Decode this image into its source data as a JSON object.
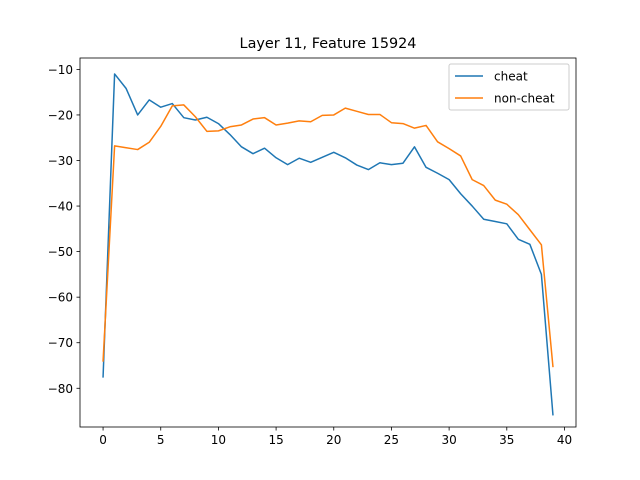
{
  "chart_data": {
    "type": "line",
    "title": "Layer 11, Feature 15924",
    "xlabel": "",
    "ylabel": "",
    "xlim": [
      -2,
      41
    ],
    "ylim": [
      -88.5,
      -7.5
    ],
    "xticks": [
      0,
      5,
      10,
      15,
      20,
      25,
      30,
      35,
      40
    ],
    "yticks": [
      -80,
      -70,
      -60,
      -50,
      -40,
      -30,
      -20,
      -10
    ],
    "grid": false,
    "legend_position": "top-right",
    "x": [
      0,
      1,
      2,
      3,
      4,
      5,
      6,
      7,
      8,
      9,
      10,
      11,
      12,
      13,
      14,
      15,
      16,
      17,
      18,
      19,
      20,
      21,
      22,
      23,
      24,
      25,
      26,
      27,
      28,
      29,
      30,
      31,
      32,
      33,
      34,
      35,
      36,
      37,
      38,
      39
    ],
    "series": [
      {
        "name": "cheat",
        "color": "#1f77b4",
        "values": [
          -77.5,
          -11.0,
          -14.2,
          -20.0,
          -16.7,
          -18.3,
          -17.5,
          -20.6,
          -21.1,
          -20.5,
          -21.9,
          -24.3,
          -27.0,
          -28.5,
          -27.3,
          -29.4,
          -30.9,
          -29.5,
          -30.4,
          -29.3,
          -28.2,
          -29.4,
          -31.0,
          -32.0,
          -30.5,
          -30.9,
          -30.6,
          -27.0,
          -31.5,
          -32.8,
          -34.2,
          -37.3,
          -40.0,
          -42.9,
          -43.4,
          -43.9,
          -47.3,
          -48.4,
          -55.0,
          -85.8
        ]
      },
      {
        "name": "non-cheat",
        "color": "#ff7f0e",
        "values": [
          -74.0,
          -26.8,
          -27.2,
          -27.6,
          -26.0,
          -22.5,
          -18.0,
          -17.8,
          -20.4,
          -23.6,
          -23.5,
          -22.6,
          -22.2,
          -20.9,
          -20.6,
          -22.2,
          -21.8,
          -21.3,
          -21.5,
          -20.1,
          -20.0,
          -18.5,
          -19.2,
          -19.9,
          -19.9,
          -21.7,
          -21.9,
          -22.9,
          -22.3,
          -25.9,
          -27.4,
          -29.0,
          -34.2,
          -35.5,
          -38.7,
          -39.6,
          -41.9,
          -45.2,
          -48.5,
          -75.2
        ]
      }
    ]
  }
}
